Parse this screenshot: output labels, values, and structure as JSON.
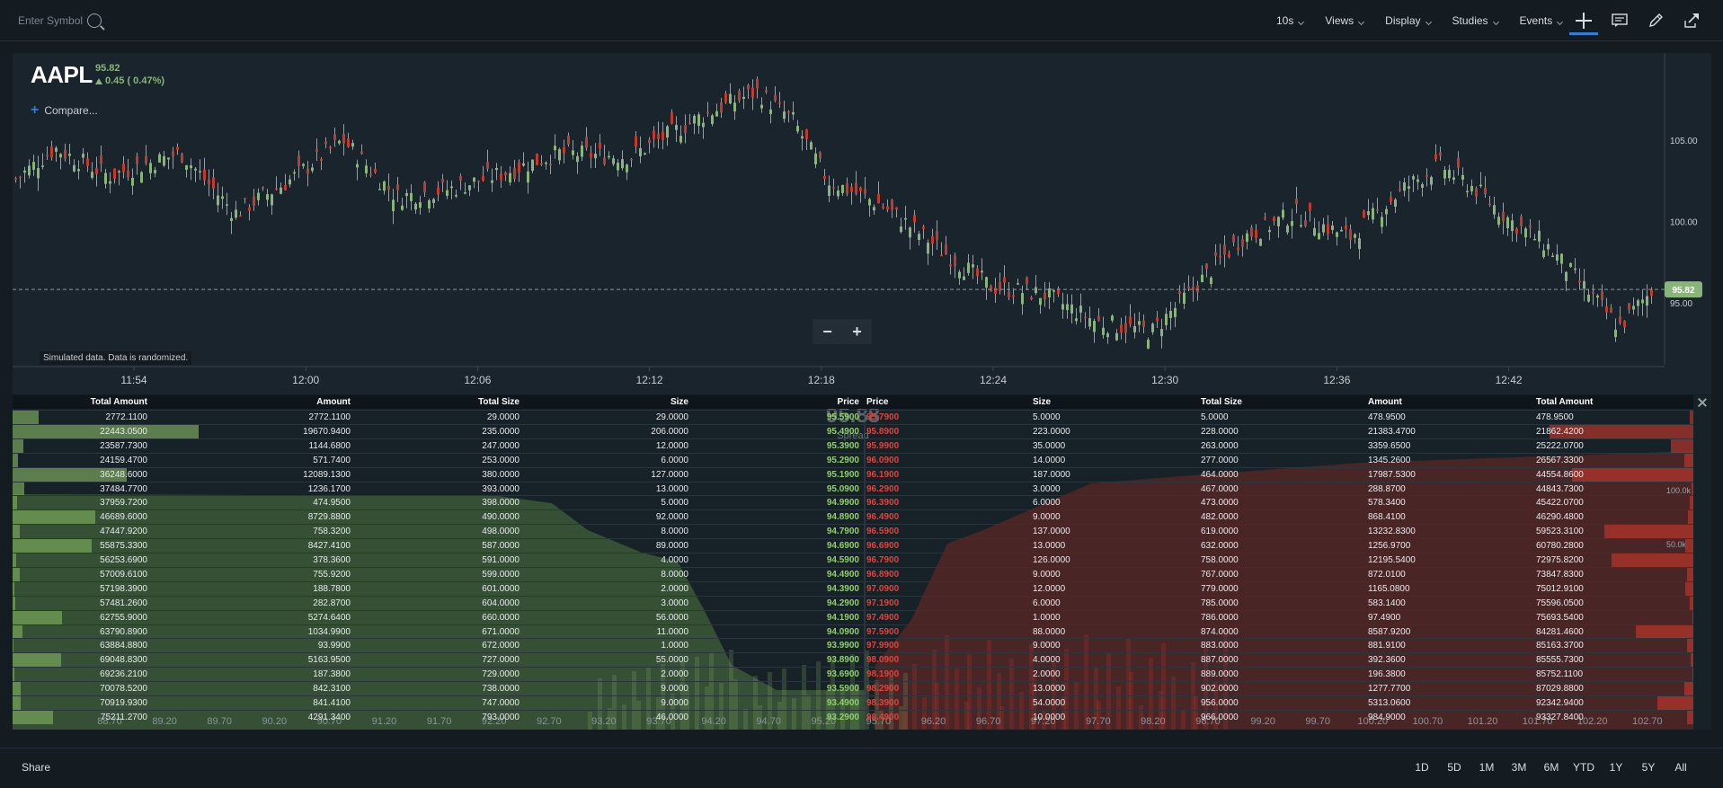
{
  "toolbar": {
    "symbol_placeholder": "Enter Symbol",
    "menus": [
      "10s",
      "Views",
      "Display",
      "Studies",
      "Events"
    ]
  },
  "chart": {
    "symbol": "AAPL",
    "price": "95.82",
    "change": "0.45 ( 0.47%)",
    "compare_label": "Compare...",
    "note": "Simulated data.  Data is randomized.",
    "current_price_label": "95.82",
    "y_ticks": [
      "105.00",
      "100.00",
      "95.00"
    ],
    "x_ticks": [
      "11:54",
      "12:00",
      "12:06",
      "12:12",
      "12:18",
      "12:24",
      "12:30",
      "12:36",
      "12:42"
    ],
    "up_color": "#8ab57a",
    "down_color": "#c23a2b"
  },
  "depth": {
    "headers": {
      "bid": [
        "Total Amount",
        "Amount",
        "Total Size",
        "Size",
        "Price"
      ],
      "ask": [
        "Price",
        "Size",
        "Total Size",
        "Amount",
        "Total Amount"
      ]
    },
    "overlay_price": "95.88",
    "overlay_spread": "Spread",
    "axis_labels": [
      "88.70",
      "89.20",
      "89.70",
      "90.20",
      "90.70",
      "91.20",
      "91.70",
      "92.20",
      "92.70",
      "93.20",
      "93.70",
      "94.20",
      "94.70",
      "95.20",
      "95.70",
      "96.20",
      "96.70",
      "97.20",
      "97.70",
      "98.20",
      "98.70",
      "99.20",
      "99.70",
      "100.20",
      "100.70",
      "101.20",
      "101.70",
      "102.20",
      "102.70"
    ],
    "right_ticks": [
      "100.0k",
      "50.0k"
    ],
    "bids": [
      [
        "2772.1100",
        "2772.1100",
        "29.0000",
        "29.0000",
        "95.5900"
      ],
      [
        "22443.0500",
        "19670.9400",
        "235.0000",
        "206.0000",
        "95.4900"
      ],
      [
        "23587.7300",
        "1144.6800",
        "247.0000",
        "12.0000",
        "95.3900"
      ],
      [
        "24159.4700",
        "571.7400",
        "253.0000",
        "6.0000",
        "95.2900"
      ],
      [
        "36248.6000",
        "12089.1300",
        "380.0000",
        "127.0000",
        "95.1900"
      ],
      [
        "37484.7700",
        "1236.1700",
        "393.0000",
        "13.0000",
        "95.0900"
      ],
      [
        "37959.7200",
        "474.9500",
        "398.0000",
        "5.0000",
        "94.9900"
      ],
      [
        "46689.6000",
        "8729.8800",
        "490.0000",
        "92.0000",
        "94.8900"
      ],
      [
        "47447.9200",
        "758.3200",
        "498.0000",
        "8.0000",
        "94.7900"
      ],
      [
        "55875.3300",
        "8427.4100",
        "587.0000",
        "89.0000",
        "94.6900"
      ],
      [
        "56253.6900",
        "378.3600",
        "591.0000",
        "4.0000",
        "94.5900"
      ],
      [
        "57009.6100",
        "755.9200",
        "599.0000",
        "8.0000",
        "94.4900"
      ],
      [
        "57198.3900",
        "188.7800",
        "601.0000",
        "2.0000",
        "94.3900"
      ],
      [
        "57481.2600",
        "282.8700",
        "604.0000",
        "3.0000",
        "94.2900"
      ],
      [
        "62755.9000",
        "5274.6400",
        "660.0000",
        "56.0000",
        "94.1900"
      ],
      [
        "63790.8900",
        "1034.9900",
        "671.0000",
        "11.0000",
        "94.0900"
      ],
      [
        "63884.8800",
        "93.9900",
        "672.0000",
        "1.0000",
        "93.9900"
      ],
      [
        "69048.8300",
        "5163.9500",
        "727.0000",
        "55.0000",
        "93.8900"
      ],
      [
        "69236.2100",
        "187.3800",
        "729.0000",
        "2.0000",
        "93.6900"
      ],
      [
        "70078.5200",
        "842.3100",
        "738.0000",
        "9.0000",
        "93.5900"
      ],
      [
        "70919.9300",
        "841.4100",
        "747.0000",
        "9.0000",
        "93.4900"
      ],
      [
        "75211.2700",
        "4291.3400",
        "793.0000",
        "46.0000",
        "93.2900"
      ]
    ],
    "asks": [
      [
        "95.7900",
        "5.0000",
        "5.0000",
        "478.9500",
        "478.9500"
      ],
      [
        "95.8900",
        "223.0000",
        "228.0000",
        "21383.4700",
        "21862.4200"
      ],
      [
        "95.9900",
        "35.0000",
        "263.0000",
        "3359.6500",
        "25222.0700"
      ],
      [
        "96.0900",
        "14.0000",
        "277.0000",
        "1345.2600",
        "26567.3300"
      ],
      [
        "96.1900",
        "187.0000",
        "464.0000",
        "17987.5300",
        "44554.8600"
      ],
      [
        "96.2900",
        "3.0000",
        "467.0000",
        "288.8700",
        "44843.7300"
      ],
      [
        "96.3900",
        "6.0000",
        "473.0000",
        "578.3400",
        "45422.0700"
      ],
      [
        "96.4900",
        "9.0000",
        "482.0000",
        "868.4100",
        "46290.4800"
      ],
      [
        "96.5900",
        "137.0000",
        "619.0000",
        "13232.8300",
        "59523.3100"
      ],
      [
        "96.6900",
        "13.0000",
        "632.0000",
        "1256.9700",
        "60780.2800"
      ],
      [
        "96.7900",
        "126.0000",
        "758.0000",
        "12195.5400",
        "72975.8200"
      ],
      [
        "96.8900",
        "9.0000",
        "767.0000",
        "872.0100",
        "73847.8300"
      ],
      [
        "97.0900",
        "12.0000",
        "779.0000",
        "1165.0800",
        "75012.9100"
      ],
      [
        "97.1900",
        "6.0000",
        "785.0000",
        "583.1400",
        "75596.0500"
      ],
      [
        "97.4900",
        "1.0000",
        "786.0000",
        "97.4900",
        "75693.5400"
      ],
      [
        "97.5900",
        "88.0000",
        "874.0000",
        "8587.9200",
        "84281.4600"
      ],
      [
        "97.9900",
        "9.0000",
        "883.0000",
        "881.9100",
        "85163.3700"
      ],
      [
        "98.0900",
        "4.0000",
        "887.0000",
        "392.3600",
        "85555.7300"
      ],
      [
        "98.1900",
        "2.0000",
        "889.0000",
        "196.3800",
        "85752.1100"
      ],
      [
        "98.2900",
        "13.0000",
        "902.0000",
        "1277.7700",
        "87029.8800"
      ],
      [
        "98.3900",
        "54.0000",
        "956.0000",
        "5313.0600",
        "92342.9400"
      ],
      [
        "98.4900",
        "10.0000",
        "966.0000",
        "984.9000",
        "93327.8400"
      ]
    ]
  },
  "footer": {
    "share_label": "Share",
    "periods": [
      "1D",
      "5D",
      "1M",
      "3M",
      "6M",
      "YTD",
      "1Y",
      "5Y",
      "All"
    ]
  }
}
